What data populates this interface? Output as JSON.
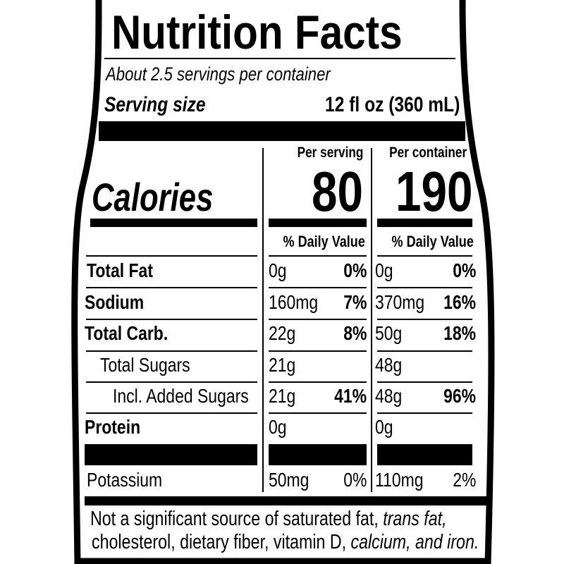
{
  "title": "Nutrition Facts",
  "servings_per_container": "About 2.5 servings per container",
  "serving_size_label": "Serving size",
  "serving_size_value": "12 fl oz (360 mL)",
  "calories": {
    "label": "Calories",
    "per_serving_label": "Per serving",
    "per_container_label": "Per container",
    "per_serving": "80",
    "per_container": "190"
  },
  "dv_header": "% Daily Value",
  "rows": [
    {
      "label": "Total Fat",
      "bold": true,
      "serving_amt": "0g",
      "serving_dv": "0%",
      "container_amt": "0g",
      "container_dv": "0%"
    },
    {
      "label": "Sodium",
      "bold": true,
      "serving_amt": "160mg",
      "serving_dv": "7%",
      "container_amt": "370mg",
      "container_dv": "16%"
    },
    {
      "label": "Total Carb.",
      "bold": true,
      "serving_amt": "22g",
      "serving_dv": "8%",
      "container_amt": "50g",
      "container_dv": "18%"
    },
    {
      "label": "Total Sugars",
      "bold": false,
      "serving_amt": "21g",
      "serving_dv": "",
      "container_amt": "48g",
      "container_dv": ""
    },
    {
      "label": "Incl. Added Sugars",
      "bold": false,
      "serving_amt": "21g",
      "serving_dv": "41%",
      "container_amt": "48g",
      "container_dv": "96%"
    },
    {
      "label": "Protein",
      "bold": true,
      "serving_amt": "0g",
      "serving_dv": "",
      "container_amt": "0g",
      "container_dv": ""
    }
  ],
  "potassium": {
    "label": "Potassium",
    "serving_amt": "50mg",
    "serving_dv": "0%",
    "container_amt": "110mg",
    "container_dv": "2%"
  },
  "footnote": {
    "line1_a": "Not a significant source of saturated fat, ",
    "line1_b": "trans fat,",
    "line2_a": "cholesterol, dietary fiber, vitamin D, ",
    "line2_b": "calcium, and iron."
  }
}
